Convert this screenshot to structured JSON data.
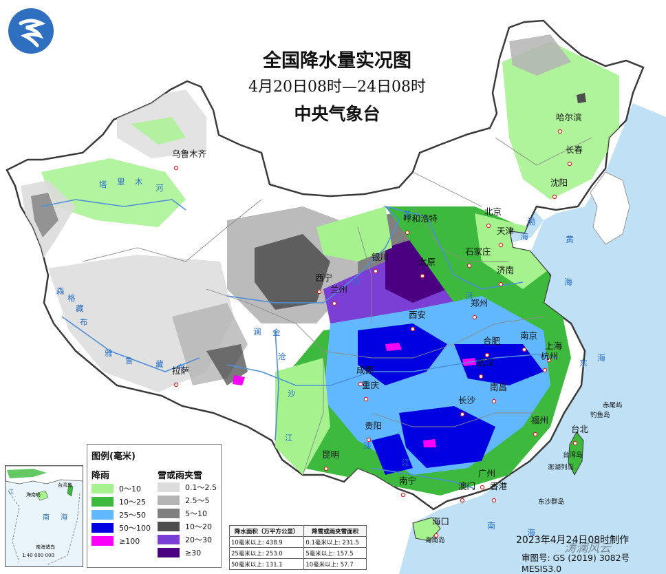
{
  "title": {
    "main": "全国降水量实况图",
    "period": "4月20日08时—24日08时",
    "agency": "中央气象台"
  },
  "cities": [
    {
      "name": "乌鲁木齐"
    },
    {
      "name": "哈尔滨"
    },
    {
      "name": "长春"
    },
    {
      "name": "沈阳"
    },
    {
      "name": "北京"
    },
    {
      "name": "天津"
    },
    {
      "name": "呼和浩特"
    },
    {
      "name": "石家庄"
    },
    {
      "name": "太原"
    },
    {
      "name": "银川"
    },
    {
      "name": "济南"
    },
    {
      "name": "西宁"
    },
    {
      "name": "兰州"
    },
    {
      "name": "郑州"
    },
    {
      "name": "西安"
    },
    {
      "name": "南京"
    },
    {
      "name": "合肥"
    },
    {
      "name": "上海"
    },
    {
      "name": "杭州"
    },
    {
      "name": "武汉"
    },
    {
      "name": "成都"
    },
    {
      "name": "拉萨"
    },
    {
      "name": "重庆"
    },
    {
      "name": "南昌"
    },
    {
      "name": "长沙"
    },
    {
      "name": "福州"
    },
    {
      "name": "台北"
    },
    {
      "name": "贵阳"
    },
    {
      "name": "昆明"
    },
    {
      "name": "南宁"
    },
    {
      "name": "广州"
    },
    {
      "name": "澳门"
    },
    {
      "name": "香港"
    },
    {
      "name": "海口"
    }
  ],
  "river_labels": [
    "塔",
    "里",
    "木",
    "河",
    "黄",
    "河",
    "河",
    "森",
    "格",
    "藏",
    "布",
    "雅",
    "鲁",
    "藏",
    "布",
    "金",
    "沙",
    "江",
    "澜",
    "沧",
    "江",
    "珠",
    "江"
  ],
  "sea_labels": [
    "渤",
    "海",
    "黄",
    "海",
    "东",
    "海",
    "南",
    "海"
  ],
  "island_labels": [
    "赤尾屿",
    "钓鱼岛",
    "台湾岛",
    "澎湖列岛",
    "东沙群岛",
    "海南岛"
  ],
  "legend": {
    "title": "图例(毫米)",
    "rain_header": "降雨",
    "snow_header": "雪或雨夹雪",
    "rain": [
      {
        "label": "0～10",
        "color": "#a6f28f"
      },
      {
        "label": "10～25",
        "color": "#3dba3d"
      },
      {
        "label": "25～50",
        "color": "#61b8ff"
      },
      {
        "label": "50～100",
        "color": "#0000e1"
      },
      {
        "label": "≥100",
        "color": "#fa00fa"
      }
    ],
    "snow": [
      {
        "label": "0.1～2.5",
        "color": "#dcdcdc"
      },
      {
        "label": "2.5～5",
        "color": "#b4b4b4"
      },
      {
        "label": "5～10",
        "color": "#808080"
      },
      {
        "label": "10～20",
        "color": "#4d4d4d"
      },
      {
        "label": "20～30",
        "color": "#7b3fd6"
      },
      {
        "label": "≥30",
        "color": "#4b0082"
      }
    ]
  },
  "area_table": {
    "rain_header": "降水面积（万平方公里）",
    "snow_header": "降雪或雨夹雪面积",
    "rows": [
      {
        "rain": "10毫米以上: 438.9",
        "snow": "0.1毫米以上: 231.5"
      },
      {
        "rain": "25毫米以上: 253.0",
        "snow": "5毫米以上: 157.5"
      },
      {
        "rain": "50毫米以上: 131.1",
        "snow": "10毫米以上: 57.7"
      }
    ]
  },
  "inset": {
    "labels": [
      "台湾岛",
      "海南岛",
      "南",
      "海",
      "南海诸岛",
      "江"
    ],
    "scale": "1:40 000 000"
  },
  "credit": "2023年4月24日08时制作",
  "audit": "审图号: GS (2019) 3082号 MESIS3.0",
  "watermark": "涛澜风云",
  "colors": {
    "sea": "#bfe0f5",
    "land": "#ffffff",
    "border": "#3a3a3a",
    "river": "#4f8fd8"
  }
}
